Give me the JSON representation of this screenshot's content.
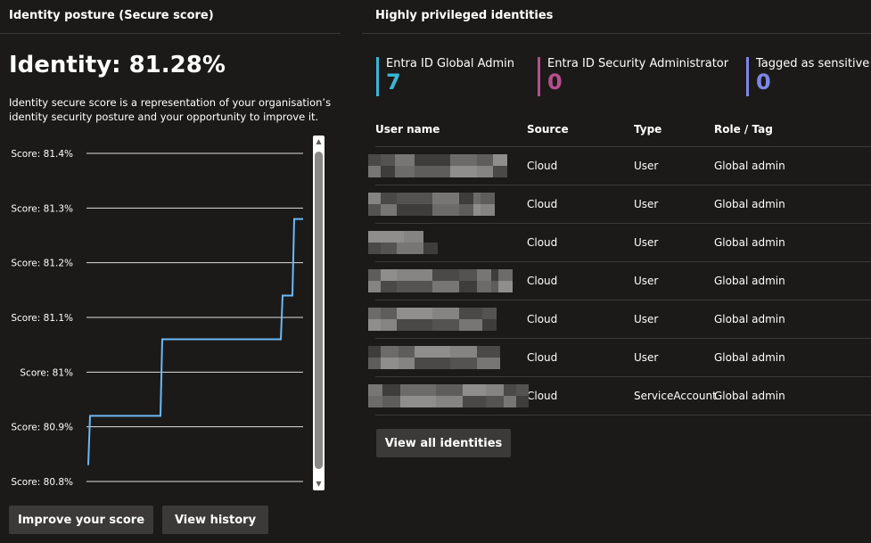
{
  "left_panel": {
    "title": "Identity posture (Secure score)",
    "score_heading": "Identity: 81.28%",
    "description": "Identity secure score is a representation of your organisation’s identity security posture and your opportunity to improve it.",
    "buttons": {
      "improve": "Improve your score",
      "history": "View history"
    }
  },
  "chart_data": {
    "type": "line",
    "ytick_labels": [
      "Score: 81.4%",
      "Score: 81.3%",
      "Score: 81.2%",
      "Score: 81.1%",
      "Score: 81%",
      "Score: 80.9%",
      "Score: 80.8%"
    ],
    "ylim": [
      80.8,
      81.4
    ],
    "grid": true,
    "line_color": "#6cb8f6",
    "series": [
      {
        "values": [
          80.83,
          80.92,
          80.92,
          81.06,
          81.06,
          81.14,
          81.14,
          81.28,
          81.28
        ]
      }
    ]
  },
  "right_panel": {
    "title": "Highly privileged identities",
    "stats": [
      {
        "label": "Entra ID Global Admin",
        "value": "7",
        "color": "#3ab6d6"
      },
      {
        "label": "Entra ID Security Administrator",
        "value": "0",
        "color": "#b74e8d"
      },
      {
        "label": "Tagged as sensitive",
        "value": "0",
        "color": "#7f86e6"
      }
    ],
    "table": {
      "headers": [
        "User name",
        "Source",
        "Type",
        "Role / Tag"
      ],
      "rows": [
        {
          "source": "Cloud",
          "type": "User",
          "role": "Global admin"
        },
        {
          "source": "Cloud",
          "type": "User",
          "role": "Global admin"
        },
        {
          "source": "Cloud",
          "type": "User",
          "role": "Global admin"
        },
        {
          "source": "Cloud",
          "type": "User",
          "role": "Global admin"
        },
        {
          "source": "Cloud",
          "type": "User",
          "role": "Global admin"
        },
        {
          "source": "Cloud",
          "type": "User",
          "role": "Global admin"
        },
        {
          "source": "Cloud",
          "type": "ServiceAccount",
          "role": "Global admin"
        }
      ]
    },
    "view_all_label": "View all identities"
  }
}
